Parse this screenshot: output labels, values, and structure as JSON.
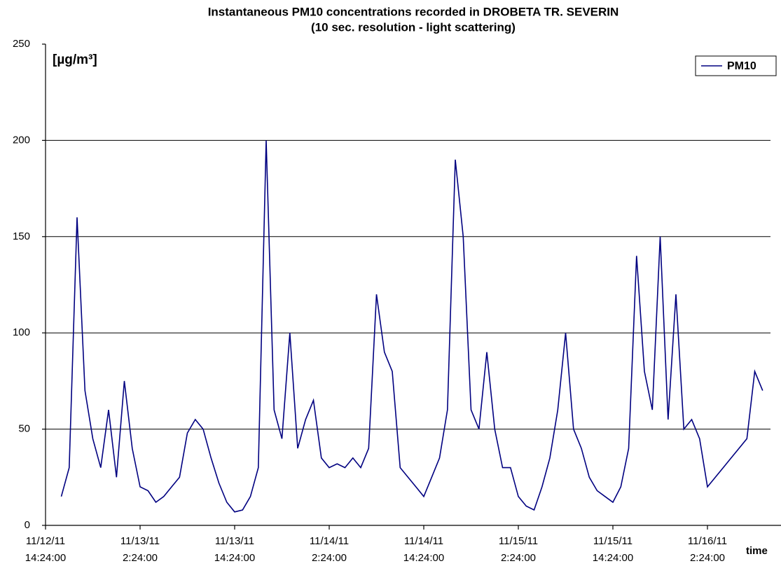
{
  "chart_data": {
    "type": "line",
    "title": "Instantaneous PM10 concentrations recorded in DROBETA TR. SEVERIN",
    "subtitle": "(10 sec. resolution - light scattering)",
    "y_unit_label": "[µg/m³]",
    "x_label": "time",
    "x": [
      "11/12/11 16:24:00",
      "11/12/11 17:24:00",
      "11/12/11 18:24:00",
      "11/12/11 19:24:00",
      "11/12/11 20:24:00",
      "11/12/11 21:24:00",
      "11/12/11 22:24:00",
      "11/12/11 23:24:00",
      "11/13/11 0:24:00",
      "11/13/11 1:24:00",
      "11/13/11 2:24:00",
      "11/13/11 3:24:00",
      "11/13/11 4:24:00",
      "11/13/11 5:24:00",
      "11/13/11 6:24:00",
      "11/13/11 7:24:00",
      "11/13/11 8:24:00",
      "11/13/11 9:24:00",
      "11/13/11 10:24:00",
      "11/13/11 11:24:00",
      "11/13/11 12:24:00",
      "11/13/11 13:24:00",
      "11/13/11 14:24:00",
      "11/13/11 15:24:00",
      "11/13/11 16:24:00",
      "11/13/11 17:24:00",
      "11/13/11 18:24:00",
      "11/13/11 19:24:00",
      "11/13/11 20:24:00",
      "11/13/11 21:24:00",
      "11/13/11 22:24:00",
      "11/13/11 23:24:00",
      "11/14/11 0:24:00",
      "11/14/11 1:24:00",
      "11/14/11 2:24:00",
      "11/14/11 3:24:00",
      "11/14/11 4:24:00",
      "11/14/11 5:24:00",
      "11/14/11 6:24:00",
      "11/14/11 7:24:00",
      "11/14/11 8:24:00",
      "11/14/11 9:24:00",
      "11/14/11 10:24:00",
      "11/14/11 11:24:00",
      "11/14/11 12:24:00",
      "11/14/11 13:24:00",
      "11/14/11 14:24:00",
      "11/14/11 15:24:00",
      "11/14/11 16:24:00",
      "11/14/11 17:24:00",
      "11/14/11 18:24:00",
      "11/14/11 19:24:00",
      "11/14/11 20:24:00",
      "11/14/11 21:24:00",
      "11/14/11 22:24:00",
      "11/14/11 23:24:00",
      "11/15/11 0:24:00",
      "11/15/11 1:24:00",
      "11/15/11 2:24:00",
      "11/15/11 3:24:00",
      "11/15/11 4:24:00",
      "11/15/11 5:24:00",
      "11/15/11 6:24:00",
      "11/15/11 7:24:00",
      "11/15/11 8:24:00",
      "11/15/11 9:24:00",
      "11/15/11 10:24:00",
      "11/15/11 11:24:00",
      "11/15/11 12:24:00",
      "11/15/11 13:24:00",
      "11/15/11 14:24:00",
      "11/15/11 15:24:00",
      "11/15/11 16:24:00",
      "11/15/11 17:24:00",
      "11/15/11 18:24:00",
      "11/15/11 19:24:00",
      "11/15/11 20:24:00",
      "11/15/11 21:24:00",
      "11/15/11 22:24:00",
      "11/15/11 23:24:00",
      "11/16/11 0:24:00",
      "11/16/11 1:24:00",
      "11/16/11 2:24:00",
      "11/16/11 3:24:00",
      "11/16/11 4:24:00",
      "11/16/11 5:24:00",
      "11/16/11 6:24:00",
      "11/16/11 7:24:00",
      "11/16/11 8:24:00",
      "11/16/11 9:24:00"
    ],
    "series": [
      {
        "name": "PM10",
        "color": "#000080",
        "values": [
          15,
          30,
          160,
          70,
          45,
          30,
          60,
          25,
          75,
          40,
          20,
          18,
          12,
          15,
          20,
          25,
          48,
          55,
          50,
          35,
          22,
          12,
          7,
          8,
          15,
          30,
          200,
          60,
          45,
          100,
          40,
          55,
          65,
          35,
          30,
          32,
          30,
          35,
          30,
          40,
          120,
          90,
          80,
          30,
          25,
          20,
          15,
          25,
          35,
          60,
          190,
          150,
          60,
          50,
          90,
          50,
          30,
          30,
          15,
          10,
          8,
          20,
          35,
          60,
          100,
          50,
          40,
          25,
          18,
          15,
          12,
          20,
          40,
          140,
          80,
          60,
          150,
          55,
          120,
          50,
          55,
          45,
          20,
          25,
          30,
          35,
          40,
          45,
          80,
          70
        ]
      }
    ],
    "xlim": [
      "11/12/11 14:24:00",
      "11/16/11 10:24:00"
    ],
    "xticks": [
      "11/12/11 14:24:00",
      "11/13/11 2:24:00",
      "11/13/11 14:24:00",
      "11/14/11 2:24:00",
      "11/14/11 14:24:00",
      "11/15/11 2:24:00",
      "11/15/11 14:24:00",
      "11/16/11 2:24:00"
    ],
    "ylim": [
      0,
      250
    ],
    "yticks": [
      0,
      50,
      100,
      150,
      200,
      250
    ],
    "grid": true,
    "legend": "top-right"
  }
}
